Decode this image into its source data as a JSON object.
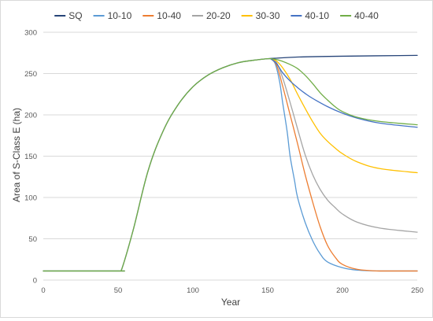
{
  "chart_data": {
    "type": "line",
    "title": "",
    "xlabel": "Year",
    "ylabel": "Area of S-Class E (ha)",
    "xlim": [
      0,
      250
    ],
    "ylim": [
      0,
      300
    ],
    "xticks": [
      0,
      50,
      100,
      150,
      200,
      250
    ],
    "yticks": [
      0,
      50,
      100,
      150,
      200,
      250,
      300
    ],
    "grid": "horizontal",
    "legend_position": "top",
    "series": [
      {
        "name": "SQ",
        "color": "#264478",
        "x": [
          0,
          50,
          52,
          60,
          70,
          80,
          90,
          100,
          110,
          120,
          130,
          140,
          150,
          155,
          170,
          200,
          250
        ],
        "y": [
          11,
          11,
          11,
          60,
          132,
          180,
          212,
          234,
          248,
          257,
          263,
          266,
          268,
          268.5,
          270,
          271,
          272
        ]
      },
      {
        "name": "10-10",
        "color": "#5b9bd5",
        "x": [
          152,
          155,
          158,
          160,
          163,
          165,
          168,
          170,
          175,
          180,
          185,
          190,
          200,
          210,
          225,
          250
        ],
        "y": [
          268,
          262,
          240,
          215,
          180,
          150,
          120,
          100,
          70,
          48,
          32,
          22,
          15,
          12,
          11,
          11
        ]
      },
      {
        "name": "10-40",
        "color": "#ed7d31",
        "x": [
          152,
          156,
          160,
          165,
          170,
          175,
          180,
          185,
          190,
          195,
          200,
          210,
          225,
          250
        ],
        "y": [
          268,
          260,
          235,
          200,
          165,
          128,
          95,
          65,
          42,
          28,
          19,
          13,
          11,
          11
        ]
      },
      {
        "name": "20-20",
        "color": "#a5a5a5",
        "x": [
          152,
          156,
          160,
          165,
          170,
          175,
          180,
          185,
          190,
          195,
          200,
          210,
          225,
          250
        ],
        "y": [
          268,
          263,
          245,
          215,
          183,
          152,
          128,
          110,
          97,
          88,
          80,
          70,
          63,
          58
        ]
      },
      {
        "name": "30-30",
        "color": "#ffc000",
        "x": [
          152,
          156,
          160,
          165,
          170,
          175,
          180,
          185,
          190,
          195,
          200,
          210,
          225,
          250
        ],
        "y": [
          268,
          265,
          257,
          243,
          225,
          208,
          192,
          178,
          168,
          160,
          153,
          143,
          135,
          130
        ]
      },
      {
        "name": "40-10",
        "color": "#4472c4",
        "x": [
          152,
          156,
          160,
          165,
          170,
          175,
          180,
          190,
          200,
          210,
          225,
          250
        ],
        "y": [
          268,
          262,
          251,
          241,
          233,
          226,
          220,
          210,
          202,
          196,
          190,
          185
        ]
      },
      {
        "name": "40-40",
        "color": "#70ad47",
        "x": [
          0,
          50,
          52,
          60,
          70,
          80,
          90,
          100,
          110,
          120,
          130,
          140,
          150,
          152,
          158,
          165,
          170,
          175,
          180,
          185,
          190,
          195,
          200,
          210,
          225,
          250
        ],
        "y": [
          11,
          11,
          11,
          60,
          132,
          180,
          212,
          234,
          248,
          257,
          263,
          266,
          268,
          268,
          266,
          261,
          256,
          248,
          238,
          227,
          218,
          210,
          204,
          197,
          192,
          188
        ]
      }
    ]
  }
}
